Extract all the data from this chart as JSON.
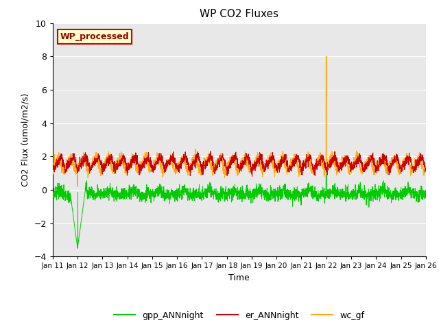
{
  "title": "WP CO2 Fluxes",
  "xlabel": "Time",
  "ylabel": "CO2 Flux (umol/m2/s)",
  "ylim": [
    -4,
    10
  ],
  "yticks": [
    -4,
    -2,
    0,
    2,
    4,
    6,
    8,
    10
  ],
  "xtick_labels": [
    "Jan 11",
    "Jan 12",
    "Jan 13",
    "Jan 14",
    "Jan 15",
    "Jan 16",
    "Jan 17",
    "Jan 18",
    "Jan 19",
    "Jan 20",
    "Jan 21",
    "Jan 22",
    "Jan 23",
    "Jan 24",
    "Jan 25",
    "Jan 26"
  ],
  "color_gpp": "#00cc00",
  "color_er": "#cc0000",
  "color_wc": "#ffaa00",
  "legend_label_gpp": "gpp_ANNnight",
  "legend_label_er": "er_ANNnight",
  "legend_label_wc": "wc_gf",
  "text_box_label": "WP_processed",
  "text_box_facecolor": "#ffffcc",
  "text_box_edgecolor": "#cc0000",
  "text_box_textcolor": "#990000",
  "background_color": "#e8e8e8",
  "seed": 42,
  "n_points": 2880,
  "days": 15
}
